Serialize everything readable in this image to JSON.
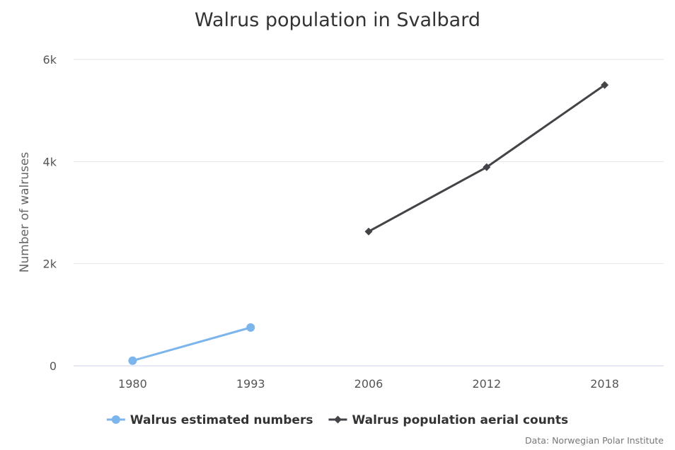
{
  "chart_data": {
    "type": "line",
    "title": "Walrus population in Svalbard",
    "ylabel": "Number of walruses",
    "xlabel": "",
    "categories": [
      "1980",
      "1993",
      "2006",
      "2012",
      "2018"
    ],
    "y_ticks": [
      {
        "value": 0,
        "label": "0"
      },
      {
        "value": 2000,
        "label": "2k"
      },
      {
        "value": 4000,
        "label": "4k"
      },
      {
        "value": 6000,
        "label": "6k"
      }
    ],
    "ylim": [
      0,
      6000
    ],
    "grid": true,
    "legend_position": "bottom",
    "series": [
      {
        "name": "Walrus estimated numbers",
        "color": "#7cb5ec",
        "marker": "circle",
        "values": [
          100,
          750,
          null,
          null,
          null
        ]
      },
      {
        "name": "Walrus population aerial counts",
        "color": "#434348",
        "marker": "diamond",
        "values": [
          null,
          null,
          2630,
          3890,
          5500
        ]
      }
    ],
    "credits": "Data: Norwegian Polar Institute"
  }
}
